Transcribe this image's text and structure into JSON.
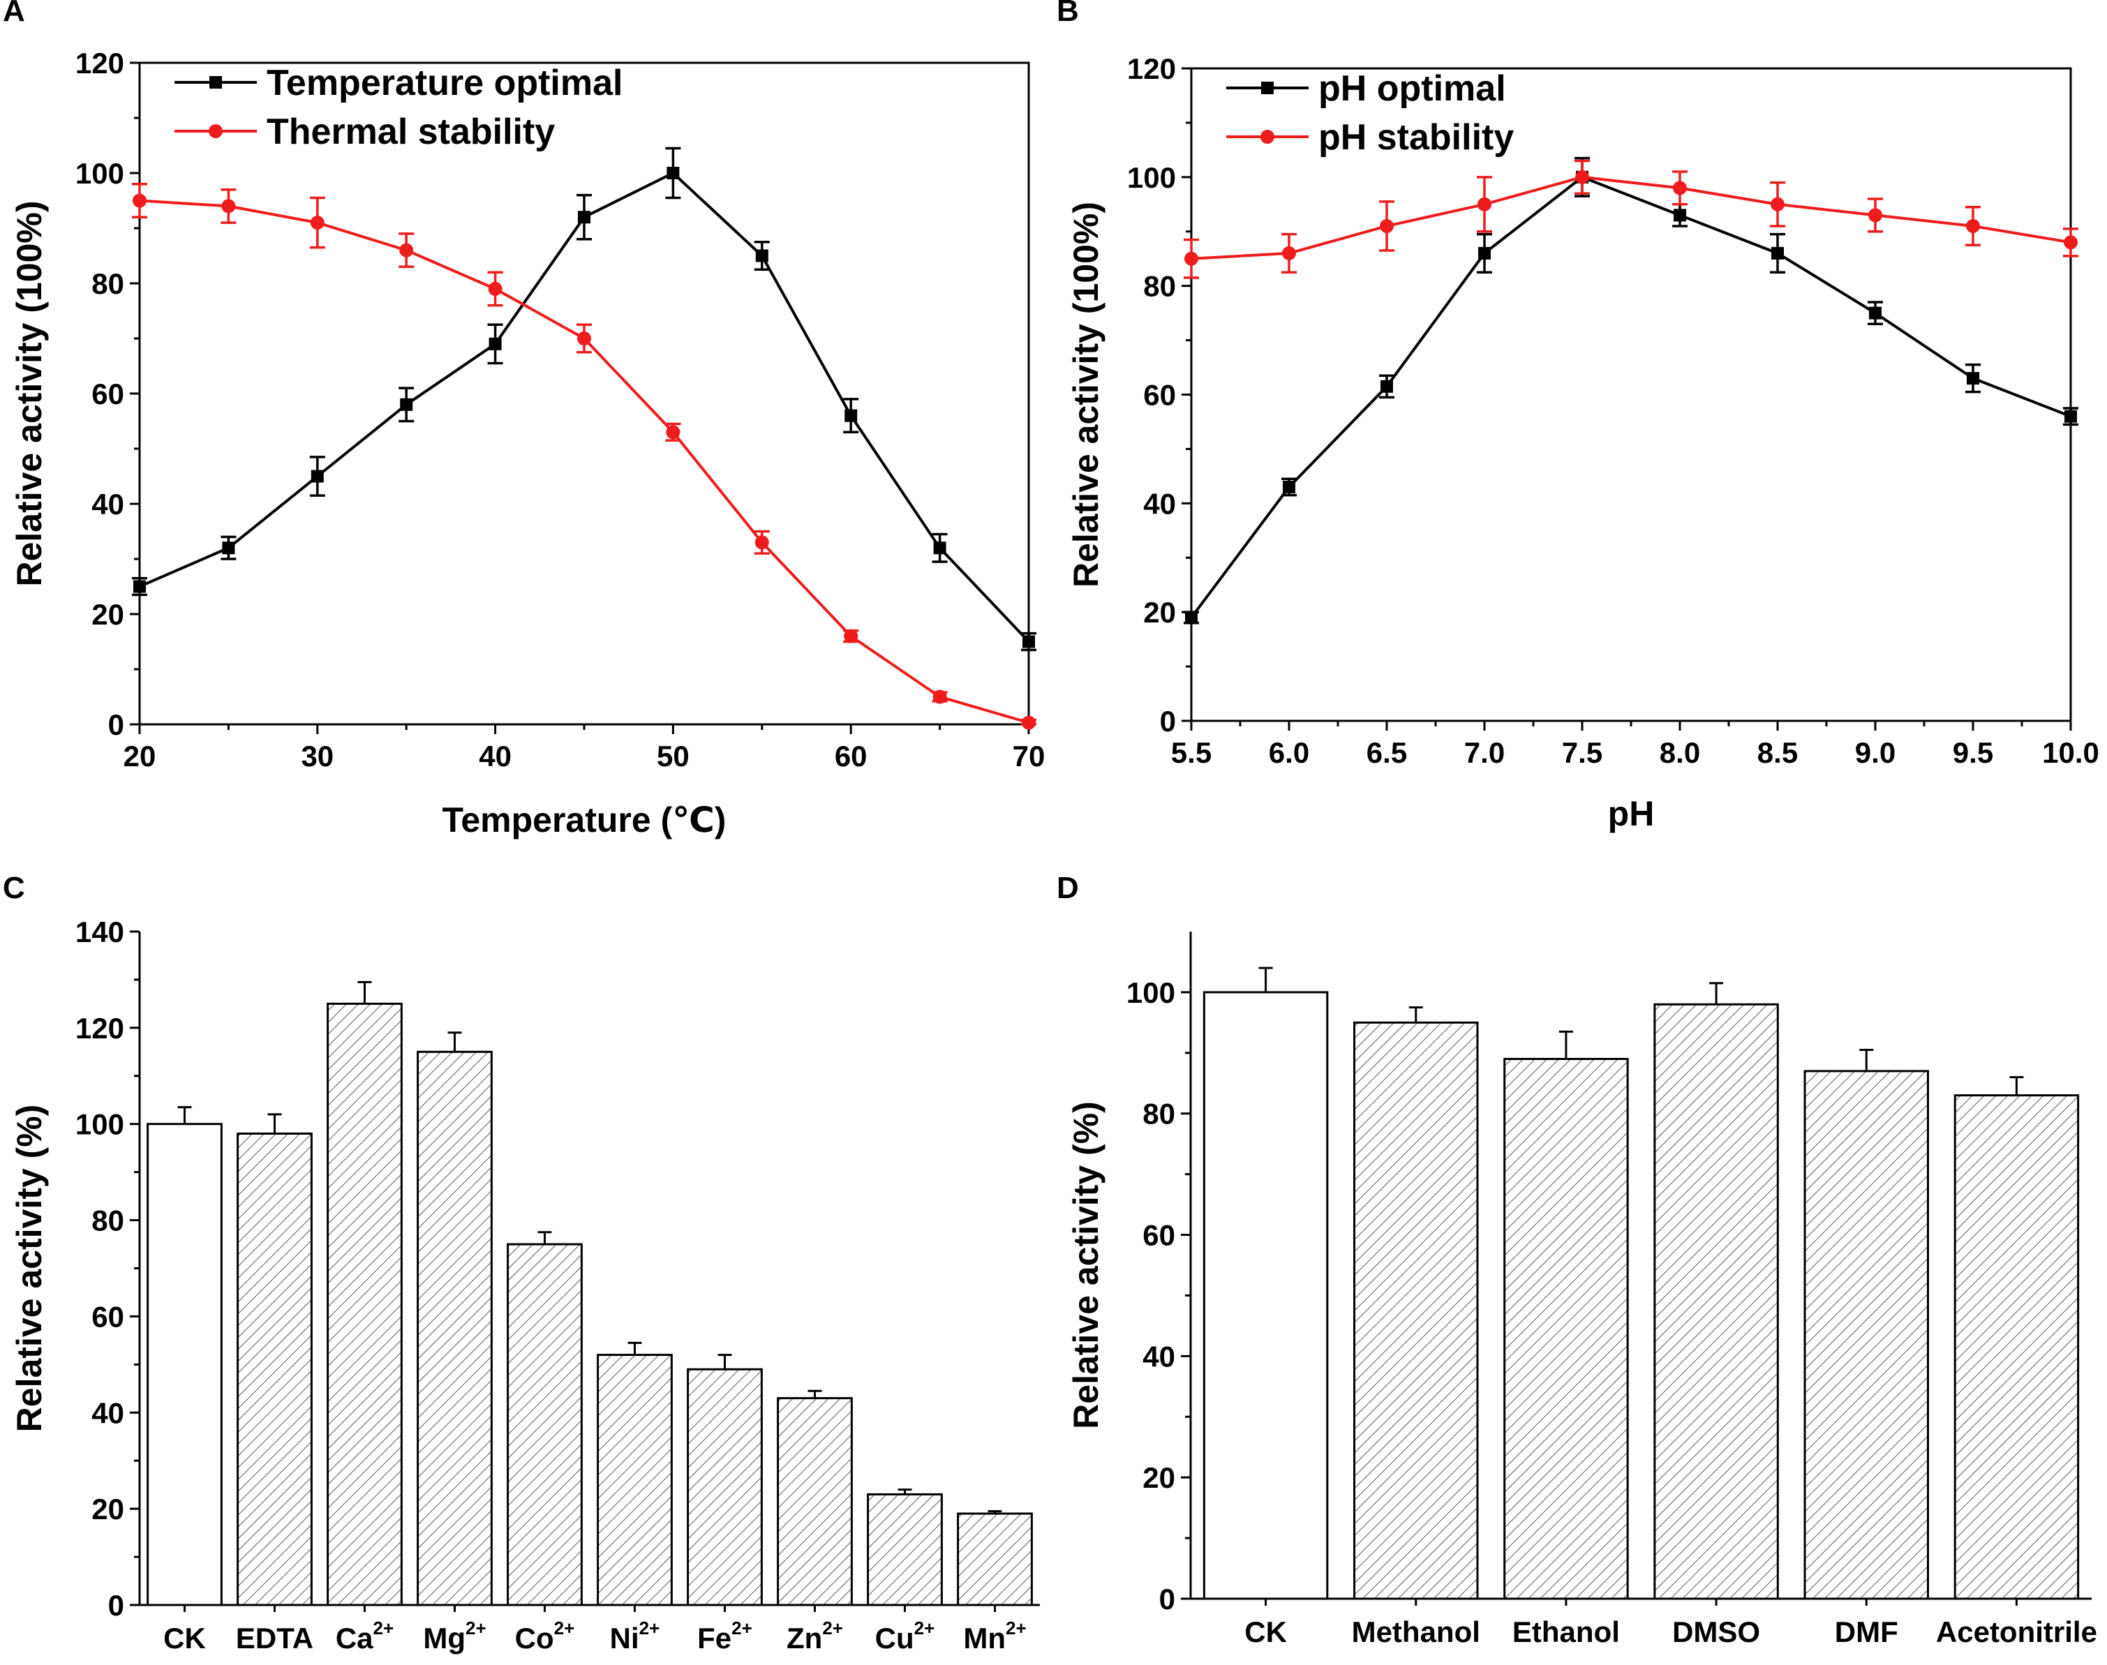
{
  "chart_data": [
    {
      "panel": "A",
      "type": "line",
      "xlabel": "Temperature (℃)",
      "ylabel": "Relative activity (100%)",
      "xlim": [
        20,
        70
      ],
      "ylim": [
        0,
        120
      ],
      "xticks": [
        "20",
        "30",
        "40",
        "50",
        "60",
        "70"
      ],
      "yticks": [
        "0",
        "20",
        "40",
        "60",
        "80",
        "100",
        "120"
      ],
      "legend_position": "top-left",
      "x": [
        20,
        25,
        30,
        35,
        40,
        45,
        50,
        55,
        60,
        65,
        70
      ],
      "series": [
        {
          "name": "Temperature optimal",
          "color": "#000000",
          "marker": "square",
          "values": [
            25,
            32,
            45,
            58,
            69,
            92,
            100,
            85,
            56,
            32,
            15
          ],
          "errors": [
            1.5,
            2,
            3.5,
            3,
            3.5,
            4,
            4.5,
            2.5,
            3,
            2.5,
            1.5
          ]
        },
        {
          "name": "Thermal stability",
          "color": "#ee1c1c",
          "marker": "circle",
          "values": [
            95,
            94,
            91,
            86,
            79,
            70,
            53,
            33,
            16,
            5,
            0.3
          ],
          "errors": [
            3,
            3,
            4.5,
            3,
            3,
            2.5,
            1.5,
            2,
            1,
            0.8,
            0.5
          ]
        }
      ]
    },
    {
      "panel": "B",
      "type": "line",
      "xlabel": "pH",
      "ylabel": "Relative activity (100%)",
      "xlim": [
        5.5,
        10.0
      ],
      "ylim": [
        0,
        120
      ],
      "xticks": [
        "5.5",
        "6.0",
        "6.5",
        "7.0",
        "7.5",
        "8.0",
        "8.5",
        "9.0",
        "9.5",
        "10.0"
      ],
      "yticks": [
        "0",
        "20",
        "40",
        "60",
        "80",
        "100",
        "120"
      ],
      "legend_position": "top-left",
      "x": [
        5.5,
        6.0,
        6.5,
        7.0,
        7.5,
        8.0,
        8.5,
        9.0,
        9.5,
        10.0
      ],
      "series": [
        {
          "name": "pH optimal",
          "color": "#000000",
          "marker": "square",
          "values": [
            19,
            43,
            61.5,
            86,
            100,
            93,
            86,
            75,
            63,
            56
          ],
          "errors": [
            1,
            1.5,
            2,
            3.5,
            3.5,
            2,
            3.5,
            2,
            2.5,
            1.5
          ]
        },
        {
          "name": "pH stability",
          "color": "#ee1c1c",
          "marker": "circle",
          "values": [
            85,
            86,
            91,
            95,
            100,
            98,
            95,
            93,
            91,
            88
          ],
          "errors": [
            3.5,
            3.5,
            4.5,
            5,
            3,
            3,
            4,
            3,
            3.5,
            2.5
          ]
        }
      ]
    },
    {
      "panel": "C",
      "type": "bar",
      "ylabel": "Relative activity (%)",
      "ylim": [
        0,
        140
      ],
      "yticks": [
        "0",
        "20",
        "40",
        "60",
        "80",
        "100",
        "120",
        "140"
      ],
      "categories": [
        {
          "base": "CK",
          "sup": ""
        },
        {
          "base": "EDTA",
          "sup": ""
        },
        {
          "base": "Ca",
          "sup": "2+"
        },
        {
          "base": "Mg",
          "sup": "2+"
        },
        {
          "base": "Co",
          "sup": "2+"
        },
        {
          "base": "Ni",
          "sup": "2+"
        },
        {
          "base": "Fe",
          "sup": "2+"
        },
        {
          "base": "Zn",
          "sup": "2+"
        },
        {
          "base": "Cu",
          "sup": "2+"
        },
        {
          "base": "Mn",
          "sup": "2+"
        }
      ],
      "values": [
        100,
        98,
        125,
        115,
        75,
        52,
        49,
        43,
        23,
        19
      ],
      "errors": [
        3.5,
        4,
        4.5,
        4,
        2.5,
        2.5,
        3,
        1.5,
        1,
        0.5
      ],
      "fills": [
        "open",
        "hatched",
        "hatched",
        "hatched",
        "hatched",
        "hatched",
        "hatched",
        "hatched",
        "hatched",
        "hatched"
      ]
    },
    {
      "panel": "D",
      "type": "bar",
      "ylabel": "Relative activity (%)",
      "ylim": [
        0,
        110
      ],
      "yticks": [
        "0",
        "20",
        "40",
        "60",
        "80",
        "100"
      ],
      "categories": [
        {
          "base": "CK",
          "sup": ""
        },
        {
          "base": "Methanol",
          "sup": ""
        },
        {
          "base": "Ethanol",
          "sup": ""
        },
        {
          "base": "DMSO",
          "sup": ""
        },
        {
          "base": "DMF",
          "sup": ""
        },
        {
          "base": "Acetonitrile",
          "sup": ""
        }
      ],
      "values": [
        100,
        95,
        89,
        98,
        87,
        83
      ],
      "errors": [
        4,
        2.5,
        4.5,
        3.5,
        3.5,
        3
      ],
      "fills": [
        "open",
        "hatched",
        "hatched",
        "hatched",
        "hatched",
        "hatched"
      ]
    }
  ]
}
